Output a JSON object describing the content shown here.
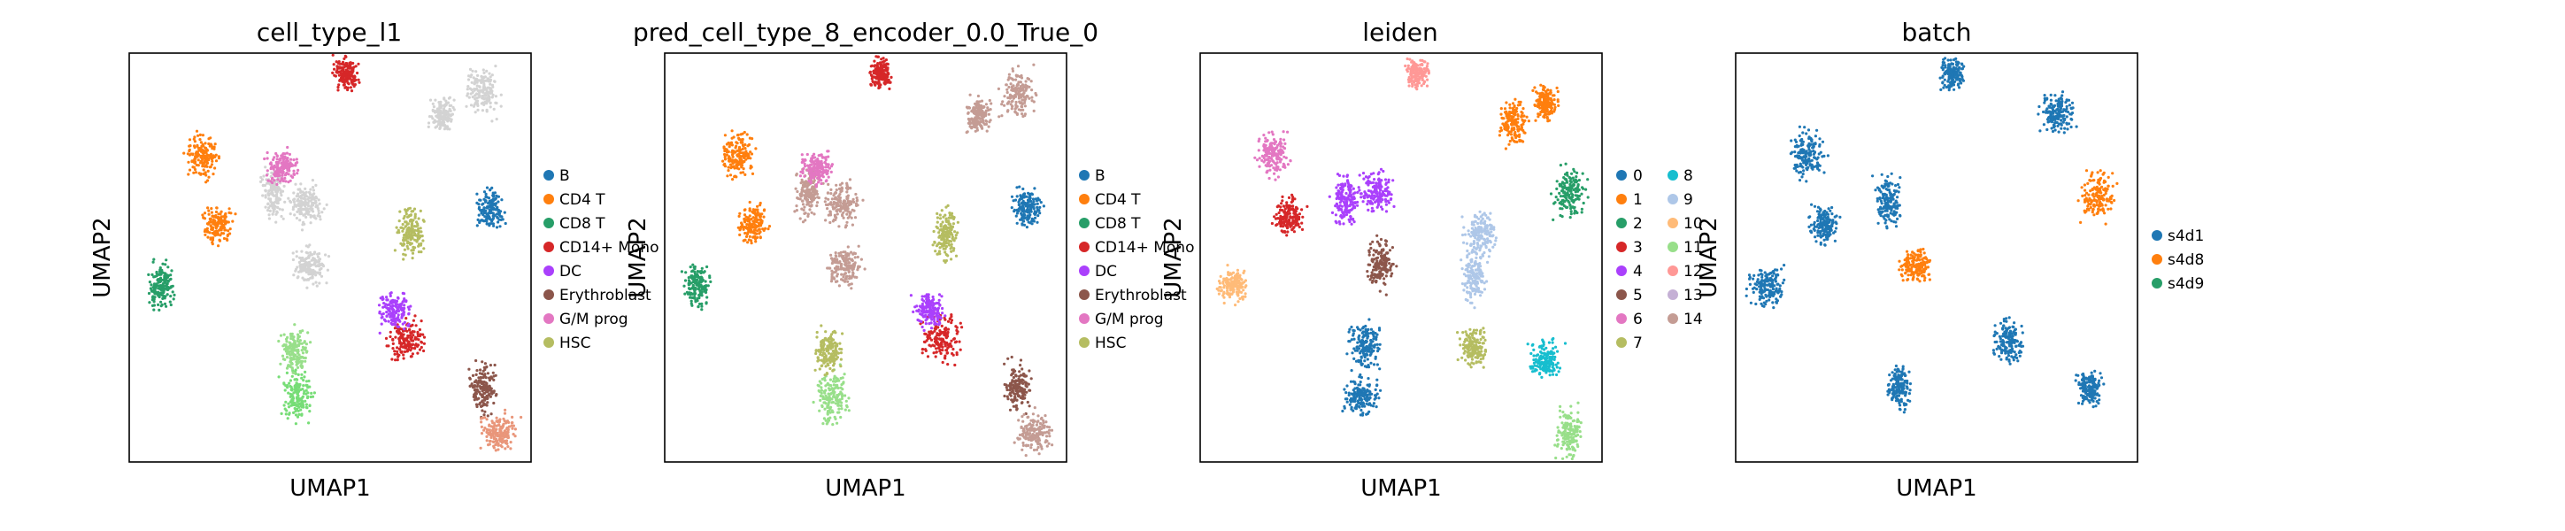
{
  "chart_data": [
    {
      "type": "scatter",
      "title": "cell_type_l1",
      "xlabel": "UMAP1",
      "ylabel": "UMAP2",
      "grid": false,
      "legend": {
        "placement": "right",
        "entries": [
          {
            "label": "B",
            "color": "#1f77b4"
          },
          {
            "label": "CD4 T",
            "color": "#ff7f0e"
          },
          {
            "label": "CD8 T",
            "color": "#279e68"
          },
          {
            "label": "CD14+ Mono",
            "color": "#d62728"
          },
          {
            "label": "DC",
            "color": "#aa40fc"
          },
          {
            "label": "Erythroblast",
            "color": "#8c564b"
          },
          {
            "label": "G/M prog",
            "color": "#e377c2"
          },
          {
            "label": "HSC",
            "color": "#b5bd61"
          }
        ]
      },
      "clusters": [
        {
          "x": 0.54,
          "y": 0.95,
          "color": "#d62728"
        },
        {
          "x": 0.18,
          "y": 0.75,
          "color": "#ff7f0e"
        },
        {
          "x": 0.22,
          "y": 0.58,
          "color": "#ff7f0e"
        },
        {
          "x": 0.36,
          "y": 0.66,
          "color": "#d3d3d3"
        },
        {
          "x": 0.44,
          "y": 0.63,
          "color": "#d3d3d3"
        },
        {
          "x": 0.38,
          "y": 0.72,
          "color": "#e377c2"
        },
        {
          "x": 0.08,
          "y": 0.43,
          "color": "#279e68"
        },
        {
          "x": 0.45,
          "y": 0.48,
          "color": "#d3d3d3"
        },
        {
          "x": 0.42,
          "y": 0.16,
          "color": "#77dd77"
        },
        {
          "x": 0.41,
          "y": 0.27,
          "color": "#98df8a"
        },
        {
          "x": 0.78,
          "y": 0.85,
          "color": "#d3d3d3"
        },
        {
          "x": 0.88,
          "y": 0.9,
          "color": "#d3d3d3"
        },
        {
          "x": 0.9,
          "y": 0.62,
          "color": "#1f77b4"
        },
        {
          "x": 0.7,
          "y": 0.56,
          "color": "#b5bd61"
        },
        {
          "x": 0.69,
          "y": 0.3,
          "color": "#d62728"
        },
        {
          "x": 0.66,
          "y": 0.37,
          "color": "#aa40fc"
        },
        {
          "x": 0.88,
          "y": 0.18,
          "color": "#8c564b"
        },
        {
          "x": 0.92,
          "y": 0.07,
          "color": "#e9967a"
        }
      ]
    },
    {
      "type": "scatter",
      "title": "pred_cell_type_8_encoder_0.0_True_0",
      "xlabel": "UMAP1",
      "ylabel": "UMAP2",
      "grid": false,
      "legend": {
        "placement": "right",
        "entries": [
          {
            "label": "B",
            "color": "#1f77b4"
          },
          {
            "label": "CD4 T",
            "color": "#ff7f0e"
          },
          {
            "label": "CD8 T",
            "color": "#279e68"
          },
          {
            "label": "CD14+ Mono",
            "color": "#d62728"
          },
          {
            "label": "DC",
            "color": "#aa40fc"
          },
          {
            "label": "Erythroblast",
            "color": "#8c564b"
          },
          {
            "label": "G/M prog",
            "color": "#e377c2"
          },
          {
            "label": "HSC",
            "color": "#b5bd61"
          }
        ]
      },
      "clusters": [
        {
          "x": 0.54,
          "y": 0.95,
          "color": "#d62728"
        },
        {
          "x": 0.18,
          "y": 0.75,
          "color": "#ff7f0e"
        },
        {
          "x": 0.22,
          "y": 0.58,
          "color": "#ff7f0e"
        },
        {
          "x": 0.36,
          "y": 0.66,
          "color": "#c49c94"
        },
        {
          "x": 0.44,
          "y": 0.63,
          "color": "#c49c94"
        },
        {
          "x": 0.38,
          "y": 0.72,
          "color": "#e377c2"
        },
        {
          "x": 0.08,
          "y": 0.43,
          "color": "#279e68"
        },
        {
          "x": 0.45,
          "y": 0.48,
          "color": "#c49c94"
        },
        {
          "x": 0.42,
          "y": 0.16,
          "color": "#98df8a"
        },
        {
          "x": 0.41,
          "y": 0.27,
          "color": "#b5bd61"
        },
        {
          "x": 0.78,
          "y": 0.85,
          "color": "#c49c94"
        },
        {
          "x": 0.88,
          "y": 0.9,
          "color": "#c49c94"
        },
        {
          "x": 0.9,
          "y": 0.62,
          "color": "#1f77b4"
        },
        {
          "x": 0.7,
          "y": 0.56,
          "color": "#b5bd61"
        },
        {
          "x": 0.69,
          "y": 0.3,
          "color": "#d62728"
        },
        {
          "x": 0.66,
          "y": 0.37,
          "color": "#aa40fc"
        },
        {
          "x": 0.88,
          "y": 0.18,
          "color": "#8c564b"
        },
        {
          "x": 0.92,
          "y": 0.07,
          "color": "#c49c94"
        }
      ]
    },
    {
      "type": "scatter",
      "title": "leiden",
      "xlabel": "UMAP1",
      "ylabel": "UMAP2",
      "grid": false,
      "legend": {
        "placement": "right",
        "entries": [
          {
            "label": "0",
            "color": "#1f77b4"
          },
          {
            "label": "1",
            "color": "#ff7f0e"
          },
          {
            "label": "2",
            "color": "#279e68"
          },
          {
            "label": "3",
            "color": "#d62728"
          },
          {
            "label": "4",
            "color": "#aa40fc"
          },
          {
            "label": "5",
            "color": "#8c564b"
          },
          {
            "label": "6",
            "color": "#e377c2"
          },
          {
            "label": "7",
            "color": "#b5bd61"
          },
          {
            "label": "8",
            "color": "#17becf"
          },
          {
            "label": "9",
            "color": "#aec7e8"
          },
          {
            "label": "10",
            "color": "#ffbb78"
          },
          {
            "label": "11",
            "color": "#98df8a"
          },
          {
            "label": "12",
            "color": "#ff9896"
          },
          {
            "label": "13",
            "color": "#c5b0d5"
          },
          {
            "label": "14",
            "color": "#c49c94"
          }
        ]
      },
      "clusters": [
        {
          "x": 0.54,
          "y": 0.95,
          "color": "#ff9896"
        },
        {
          "x": 0.18,
          "y": 0.75,
          "color": "#e377c2"
        },
        {
          "x": 0.22,
          "y": 0.6,
          "color": "#d62728"
        },
        {
          "x": 0.36,
          "y": 0.64,
          "color": "#aa40fc"
        },
        {
          "x": 0.44,
          "y": 0.66,
          "color": "#aa40fc"
        },
        {
          "x": 0.08,
          "y": 0.43,
          "color": "#ffbb78"
        },
        {
          "x": 0.45,
          "y": 0.48,
          "color": "#8c564b"
        },
        {
          "x": 0.4,
          "y": 0.16,
          "color": "#1f77b4"
        },
        {
          "x": 0.41,
          "y": 0.28,
          "color": "#1f77b4"
        },
        {
          "x": 0.78,
          "y": 0.83,
          "color": "#ff7f0e"
        },
        {
          "x": 0.86,
          "y": 0.88,
          "color": "#ff7f0e"
        },
        {
          "x": 0.92,
          "y": 0.66,
          "color": "#279e68"
        },
        {
          "x": 0.68,
          "y": 0.28,
          "color": "#b5bd61"
        },
        {
          "x": 0.68,
          "y": 0.45,
          "color": "#aec7e8"
        },
        {
          "x": 0.7,
          "y": 0.56,
          "color": "#aec7e8"
        },
        {
          "x": 0.86,
          "y": 0.25,
          "color": "#17becf"
        },
        {
          "x": 0.92,
          "y": 0.07,
          "color": "#98df8a"
        }
      ]
    },
    {
      "type": "scatter",
      "title": "batch",
      "xlabel": "UMAP1",
      "ylabel": "UMAP2",
      "grid": false,
      "legend": {
        "placement": "right",
        "entries": [
          {
            "label": "s4d1",
            "color": "#1f77b4"
          },
          {
            "label": "s4d8",
            "color": "#ff7f0e"
          },
          {
            "label": "s4d9",
            "color": "#279e68"
          }
        ]
      },
      "clusters": [
        {
          "x": 0.54,
          "y": 0.95,
          "color": "#1f77b4"
        },
        {
          "x": 0.18,
          "y": 0.75,
          "color": "#1f77b4"
        },
        {
          "x": 0.22,
          "y": 0.58,
          "color": "#1f77b4"
        },
        {
          "x": 0.38,
          "y": 0.64,
          "color": "#1f77b4"
        },
        {
          "x": 0.08,
          "y": 0.43,
          "color": "#1f77b4"
        },
        {
          "x": 0.45,
          "y": 0.48,
          "color": "#ff7f0e"
        },
        {
          "x": 0.41,
          "y": 0.18,
          "color": "#1f77b4"
        },
        {
          "x": 0.8,
          "y": 0.85,
          "color": "#1f77b4"
        },
        {
          "x": 0.9,
          "y": 0.65,
          "color": "#ff7f0e"
        },
        {
          "x": 0.68,
          "y": 0.3,
          "color": "#1f77b4"
        },
        {
          "x": 0.88,
          "y": 0.18,
          "color": "#1f77b4"
        }
      ]
    }
  ]
}
